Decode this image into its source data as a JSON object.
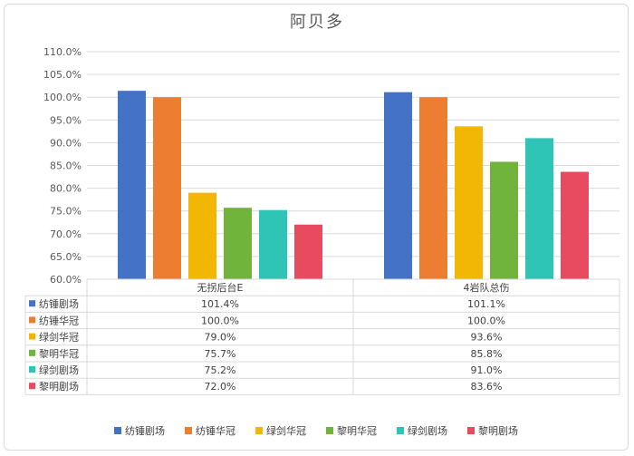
{
  "chart_data": {
    "type": "bar",
    "title": "阿贝多",
    "categories": [
      "无拐后台E",
      "4岩队总伤"
    ],
    "yaxis": {
      "min": 0.6,
      "max": 1.1,
      "step": 0.05,
      "tick_labels": [
        "60.0%",
        "65.0%",
        "70.0%",
        "75.0%",
        "80.0%",
        "85.0%",
        "90.0%",
        "95.0%",
        "100.0%",
        "105.0%",
        "110.0%"
      ]
    },
    "grid": true,
    "legend_position": "bottom",
    "data_table": true,
    "series": [
      {
        "name": "纺锤剧场",
        "color": "#4472c4",
        "values": [
          1.014,
          1.011
        ],
        "labels": [
          "101.4%",
          "101.1%"
        ]
      },
      {
        "name": "纺锤华冠",
        "color": "#ed7d31",
        "values": [
          1.0,
          1.0
        ],
        "labels": [
          "100.0%",
          "100.0%"
        ]
      },
      {
        "name": "绿剑华冠",
        "color": "#f2b705",
        "values": [
          0.79,
          0.936
        ],
        "labels": [
          "79.0%",
          "93.6%"
        ]
      },
      {
        "name": "黎明华冠",
        "color": "#70b43c",
        "values": [
          0.757,
          0.858
        ],
        "labels": [
          "75.7%",
          "85.8%"
        ]
      },
      {
        "name": "绿剑剧场",
        "color": "#2ec4b6",
        "values": [
          0.752,
          0.91
        ],
        "labels": [
          "75.2%",
          "91.0%"
        ]
      },
      {
        "name": "黎明剧场",
        "color": "#e84a5f",
        "values": [
          0.72,
          0.836
        ],
        "labels": [
          "72.0%",
          "83.6%"
        ]
      }
    ]
  }
}
